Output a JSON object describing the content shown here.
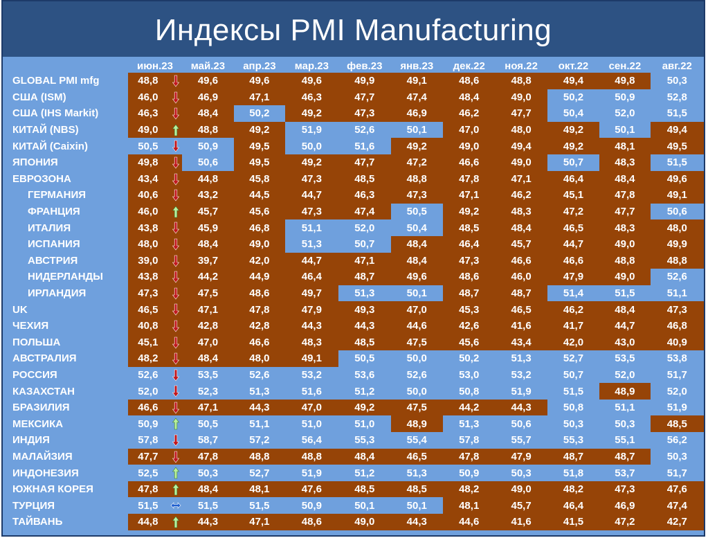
{
  "title": "Индексы PMI Manufacturing",
  "colors": {
    "brown": "#964407",
    "blue": "#6fa0dd",
    "header": "#2d5283",
    "text": "#ffffff",
    "arrow_down": "#c0161c",
    "arrow_up": "#b8f0a0",
    "arrow_flat": "#1f5fcf"
  },
  "chart_data": {
    "type": "table",
    "title": "Индексы PMI Manufacturing",
    "columns": [
      "июн.23",
      "май.23",
      "апр.23",
      "мар.23",
      "фев.23",
      "янв.23",
      "дек.22",
      "ноя.22",
      "окт.22",
      "сен.22",
      "авг.22"
    ],
    "rows": [
      {
        "name": "GLOBAL PMI mfg",
        "values": [
          "48,8",
          "49,6",
          "49,6",
          "49,6",
          "49,9",
          "49,1",
          "48,6",
          "48,8",
          "49,4",
          "49,8",
          "50,3"
        ],
        "trend": "down"
      },
      {
        "name": "США (ISM)",
        "values": [
          "46,0",
          "46,9",
          "47,1",
          "46,3",
          "47,7",
          "47,4",
          "48,4",
          "49,0",
          "50,2",
          "50,9",
          "52,8"
        ],
        "trend": "down"
      },
      {
        "name": "США (IHS Markit)",
        "values": [
          "46,3",
          "48,4",
          "50,2",
          "49,2",
          "47,3",
          "46,9",
          "46,2",
          "47,7",
          "50,4",
          "52,0",
          "51,5"
        ],
        "trend": "down"
      },
      {
        "name": "КИТАЙ (NBS)",
        "values": [
          "49,0",
          "48,8",
          "49,2",
          "51,9",
          "52,6",
          "50,1",
          "47,0",
          "48,0",
          "49,2",
          "50,1",
          "49,4"
        ],
        "trend": "up"
      },
      {
        "name": "КИТАЙ (Caixin)",
        "values": [
          "50,5",
          "50,9",
          "49,5",
          "50,0",
          "51,6",
          "49,2",
          "49,0",
          "49,4",
          "49,2",
          "48,1",
          "49,5"
        ],
        "trend": "down"
      },
      {
        "name": "ЯПОНИЯ",
        "values": [
          "49,8",
          "50,6",
          "49,5",
          "49,2",
          "47,7",
          "47,2",
          "46,6",
          "49,0",
          "50,7",
          "48,3",
          "51,5"
        ],
        "trend": "down"
      },
      {
        "name": "ЕВРОЗОНА",
        "values": [
          "43,4",
          "44,8",
          "45,8",
          "47,3",
          "48,5",
          "48,8",
          "47,8",
          "47,1",
          "46,4",
          "48,4",
          "49,6"
        ],
        "trend": "down"
      },
      {
        "name": "ГЕРМАНИЯ",
        "indent": true,
        "values": [
          "40,6",
          "43,2",
          "44,5",
          "44,7",
          "46,3",
          "47,3",
          "47,1",
          "46,2",
          "45,1",
          "47,8",
          "49,1"
        ],
        "trend": "down"
      },
      {
        "name": "ФРАНЦИЯ",
        "indent": true,
        "values": [
          "46,0",
          "45,7",
          "45,6",
          "47,3",
          "47,4",
          "50,5",
          "49,2",
          "48,3",
          "47,2",
          "47,7",
          "50,6"
        ],
        "trend": "up"
      },
      {
        "name": "ИТАЛИЯ",
        "indent": true,
        "values": [
          "43,8",
          "45,9",
          "46,8",
          "51,1",
          "52,0",
          "50,4",
          "48,5",
          "48,4",
          "46,5",
          "48,3",
          "48,0"
        ],
        "trend": "down"
      },
      {
        "name": "ИСПАНИЯ",
        "indent": true,
        "values": [
          "48,0",
          "48,4",
          "49,0",
          "51,3",
          "50,7",
          "48,4",
          "46,4",
          "45,7",
          "44,7",
          "49,0",
          "49,9"
        ],
        "trend": "down"
      },
      {
        "name": "АВСТРИЯ",
        "indent": true,
        "values": [
          "39,0",
          "39,7",
          "42,0",
          "44,7",
          "47,1",
          "48,4",
          "47,3",
          "46,6",
          "46,6",
          "48,8",
          "48,8"
        ],
        "trend": "down"
      },
      {
        "name": "НИДЕРЛАНДЫ",
        "indent": true,
        "values": [
          "43,8",
          "44,2",
          "44,9",
          "46,4",
          "48,7",
          "49,6",
          "48,6",
          "46,0",
          "47,9",
          "49,0",
          "52,6"
        ],
        "trend": "down"
      },
      {
        "name": "ИРЛАНДИЯ",
        "indent": true,
        "values": [
          "47,3",
          "47,5",
          "48,6",
          "49,7",
          "51,3",
          "50,1",
          "48,7",
          "48,7",
          "51,4",
          "51,5",
          "51,1"
        ],
        "trend": "down"
      },
      {
        "name": "UK",
        "values": [
          "46,5",
          "47,1",
          "47,8",
          "47,9",
          "49,3",
          "47,0",
          "45,3",
          "46,5",
          "46,2",
          "48,4",
          "47,3"
        ],
        "trend": "down"
      },
      {
        "name": "ЧЕХИЯ",
        "values": [
          "40,8",
          "42,8",
          "42,8",
          "44,3",
          "44,3",
          "44,6",
          "42,6",
          "41,6",
          "41,7",
          "44,7",
          "46,8"
        ],
        "trend": "down"
      },
      {
        "name": "ПОЛЬША",
        "values": [
          "45,1",
          "47,0",
          "46,6",
          "48,3",
          "48,5",
          "47,5",
          "45,6",
          "43,4",
          "42,0",
          "43,0",
          "40,9"
        ],
        "trend": "down"
      },
      {
        "name": "АВСТРАЛИЯ",
        "values": [
          "48,2",
          "48,4",
          "48,0",
          "49,1",
          "50,5",
          "50,0",
          "50,2",
          "51,3",
          "52,7",
          "53,5",
          "53,8"
        ],
        "trend": "down"
      },
      {
        "name": "РОССИЯ",
        "values": [
          "52,6",
          "53,5",
          "52,6",
          "53,2",
          "53,6",
          "52,6",
          "53,0",
          "53,2",
          "50,7",
          "52,0",
          "51,7"
        ],
        "trend": "down"
      },
      {
        "name": "КАЗАХСТАН",
        "values": [
          "52,0",
          "52,3",
          "51,3",
          "51,6",
          "51,2",
          "50,0",
          "50,8",
          "51,9",
          "51,5",
          "48,9",
          "52,0"
        ],
        "trend": "down"
      },
      {
        "name": "БРАЗИЛИЯ",
        "values": [
          "46,6",
          "47,1",
          "44,3",
          "47,0",
          "49,2",
          "47,5",
          "44,2",
          "44,3",
          "50,8",
          "51,1",
          "51,9"
        ],
        "trend": "down"
      },
      {
        "name": "МЕКСИКА",
        "values": [
          "50,9",
          "50,5",
          "51,1",
          "51,0",
          "51,0",
          "48,9",
          "51,3",
          "50,6",
          "50,3",
          "50,3",
          "48,5"
        ],
        "trend": "up"
      },
      {
        "name": "ИНДИЯ",
        "values": [
          "57,8",
          "58,7",
          "57,2",
          "56,4",
          "55,3",
          "55,4",
          "57,8",
          "55,7",
          "55,3",
          "55,1",
          "56,2"
        ],
        "trend": "down"
      },
      {
        "name": "МАЛАЙЗИЯ",
        "values": [
          "47,7",
          "47,8",
          "48,8",
          "48,8",
          "48,4",
          "46,5",
          "47,8",
          "47,9",
          "48,7",
          "48,7",
          "50,3"
        ],
        "trend": "down"
      },
      {
        "name": "ИНДОНЕЗИЯ",
        "values": [
          "52,5",
          "50,3",
          "52,7",
          "51,9",
          "51,2",
          "51,3",
          "50,9",
          "50,3",
          "51,8",
          "53,7",
          "51,7"
        ],
        "trend": "up"
      },
      {
        "name": "ЮЖНАЯ КОРЕЯ",
        "values": [
          "47,8",
          "48,4",
          "48,1",
          "47,6",
          "48,5",
          "48,5",
          "48,2",
          "49,0",
          "48,2",
          "47,3",
          "47,6"
        ],
        "trend": "up"
      },
      {
        "name": "ТУРЦИЯ",
        "values": [
          "51,5",
          "51,5",
          "51,5",
          "50,9",
          "50,1",
          "50,1",
          "48,1",
          "45,7",
          "46,4",
          "46,9",
          "47,4"
        ],
        "trend": "flat"
      },
      {
        "name": "ТАЙВАНЬ",
        "values": [
          "44,8",
          "44,3",
          "47,1",
          "48,6",
          "49,0",
          "44,3",
          "44,6",
          "41,6",
          "41,5",
          "47,2",
          "42,7"
        ],
        "trend": "up"
      }
    ]
  }
}
